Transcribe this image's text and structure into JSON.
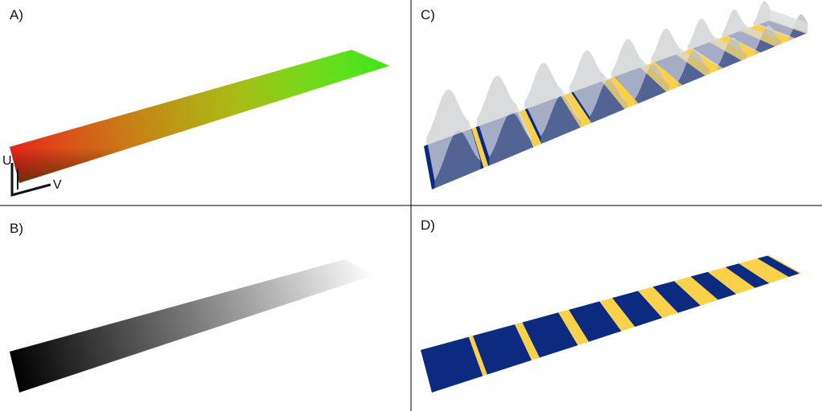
{
  "panels": [
    {
      "label": "A)",
      "axes": {
        "u": "U",
        "v": "V"
      }
    },
    {
      "label": "B)"
    },
    {
      "label": "C)"
    },
    {
      "label": "D)"
    }
  ],
  "colors": {
    "blue": "#0b2a80",
    "yellow": "#fbd04a",
    "red": "#e8201a",
    "orange": "#ee8a10",
    "green": "#29e21c",
    "lime": "#ddf21e",
    "wave": "#c0c1c4",
    "divider": "#000000"
  },
  "stripes": {
    "count": 10,
    "start_period": 0.15,
    "end_period": 0.075,
    "yellow_duty_start": 0.08,
    "yellow_duty_end": 0.72
  }
}
